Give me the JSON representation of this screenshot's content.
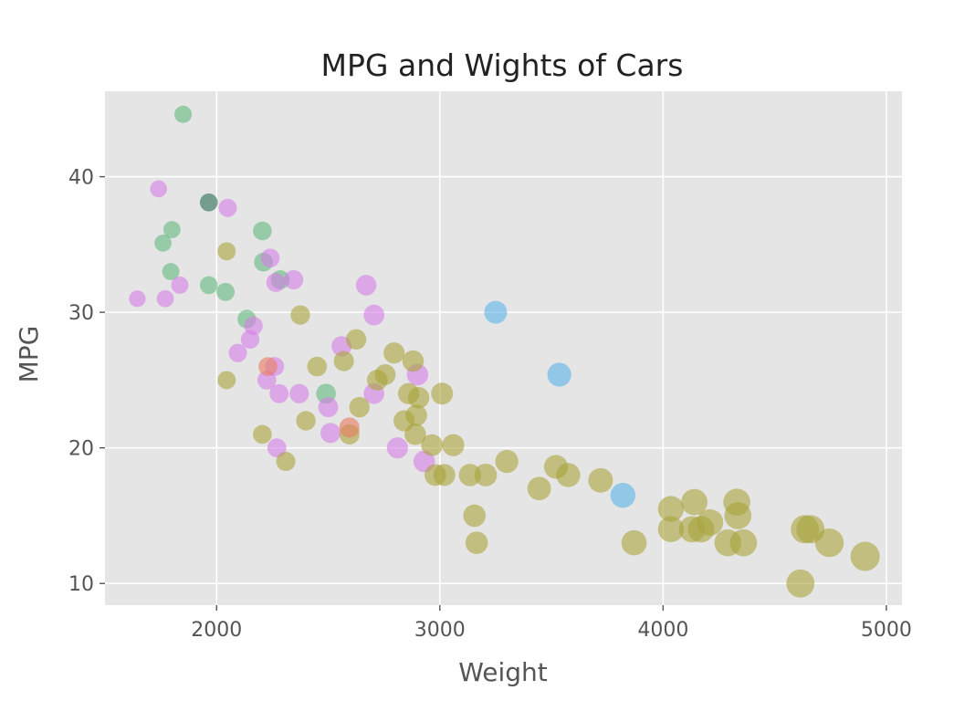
{
  "chart_data": {
    "type": "scatter",
    "title": "MPG and Wights of Cars",
    "xlabel": "Weight",
    "ylabel": "MPG",
    "xlim": [
      1500,
      5070
    ],
    "ylim": [
      8.4,
      46.3
    ],
    "xticks": [
      "2000",
      "3000",
      "4000",
      "5000"
    ],
    "yticks": [
      "10",
      "20",
      "30",
      "40"
    ],
    "grid": true,
    "background": "#e5e5e5",
    "grid_color": "#ffffff",
    "marker_alpha": 0.6,
    "point_groups": [
      {
        "color": "#63b97f",
        "points": [
          [
            1850,
            44.6
          ],
          [
            1760,
            35.1
          ],
          [
            1800,
            36.1
          ],
          [
            1795,
            33.0
          ],
          [
            1965,
            38.1
          ],
          [
            1965,
            32.0
          ],
          [
            2040,
            31.5
          ],
          [
            2135,
            29.5
          ],
          [
            2205,
            36.0
          ],
          [
            2210,
            33.7
          ],
          [
            2285,
            32.4
          ],
          [
            2490,
            24.0
          ]
        ]
      },
      {
        "color": "#d67de6",
        "points": [
          [
            1740,
            39.1
          ],
          [
            1645,
            31.0
          ],
          [
            1770,
            31.0
          ],
          [
            1835,
            32.0
          ],
          [
            2050,
            37.7
          ],
          [
            2240,
            34.0
          ],
          [
            2265,
            32.2
          ],
          [
            2345,
            32.4
          ],
          [
            2165,
            29.0
          ],
          [
            2150,
            28.0
          ],
          [
            2095,
            27.0
          ],
          [
            2225,
            25.0
          ],
          [
            2260,
            26.0
          ],
          [
            2280,
            24.0
          ],
          [
            2370,
            24.0
          ],
          [
            2500,
            23.0
          ],
          [
            2510,
            21.1
          ],
          [
            2560,
            27.5
          ],
          [
            2670,
            32.0
          ],
          [
            2705,
            29.8
          ],
          [
            2705,
            24.0
          ],
          [
            2810,
            20.0
          ],
          [
            2900,
            25.4
          ],
          [
            2930,
            19.0
          ],
          [
            2270,
            20.0
          ]
        ]
      },
      {
        "color": "#a8a43a",
        "points": [
          [
            2045,
            34.5
          ],
          [
            2045,
            25.0
          ],
          [
            2205,
            21.0
          ],
          [
            2310,
            19.0
          ],
          [
            2375,
            29.8
          ],
          [
            2400,
            22.0
          ],
          [
            2450,
            26.0
          ],
          [
            2570,
            26.4
          ],
          [
            2595,
            21.0
          ],
          [
            2625,
            28.0
          ],
          [
            2640,
            23.0
          ],
          [
            2720,
            25.0
          ],
          [
            2755,
            25.4
          ],
          [
            2795,
            27.0
          ],
          [
            2840,
            22.0
          ],
          [
            2860,
            24.0
          ],
          [
            2880,
            26.4
          ],
          [
            2890,
            21.0
          ],
          [
            2895,
            22.4
          ],
          [
            2905,
            23.7
          ],
          [
            2965,
            20.2
          ],
          [
            2980,
            18.0
          ],
          [
            3010,
            24.0
          ],
          [
            3020,
            18.0
          ],
          [
            3060,
            20.2
          ],
          [
            3135,
            18.0
          ],
          [
            3155,
            15.0
          ],
          [
            3165,
            13.0
          ],
          [
            3205,
            18.0
          ],
          [
            3300,
            19.0
          ],
          [
            3445,
            17.0
          ],
          [
            3520,
            18.6
          ],
          [
            3575,
            18.0
          ],
          [
            3720,
            17.6
          ],
          [
            3870,
            13.0
          ],
          [
            4035,
            15.5
          ],
          [
            4035,
            14.0
          ],
          [
            4130,
            14.0
          ],
          [
            4140,
            16.0
          ],
          [
            4170,
            14.0
          ],
          [
            4210,
            14.5
          ],
          [
            4290,
            13.0
          ],
          [
            4330,
            16.0
          ],
          [
            4335,
            15.0
          ],
          [
            4360,
            13.0
          ],
          [
            4615,
            10.0
          ],
          [
            4635,
            14.0
          ],
          [
            4660,
            14.0
          ],
          [
            4745,
            13.0
          ],
          [
            4905,
            12.0
          ]
        ]
      },
      {
        "color": "#5cb2ea",
        "points": [
          [
            3250,
            30.0
          ],
          [
            3535,
            25.4
          ],
          [
            3820,
            16.5
          ]
        ]
      },
      {
        "color": "#e87c5f",
        "points": [
          [
            2230,
            26.0
          ],
          [
            2595,
            21.5
          ]
        ]
      },
      {
        "color": "#5f7f7d",
        "points": [
          [
            1965,
            38.1
          ]
        ]
      }
    ]
  }
}
